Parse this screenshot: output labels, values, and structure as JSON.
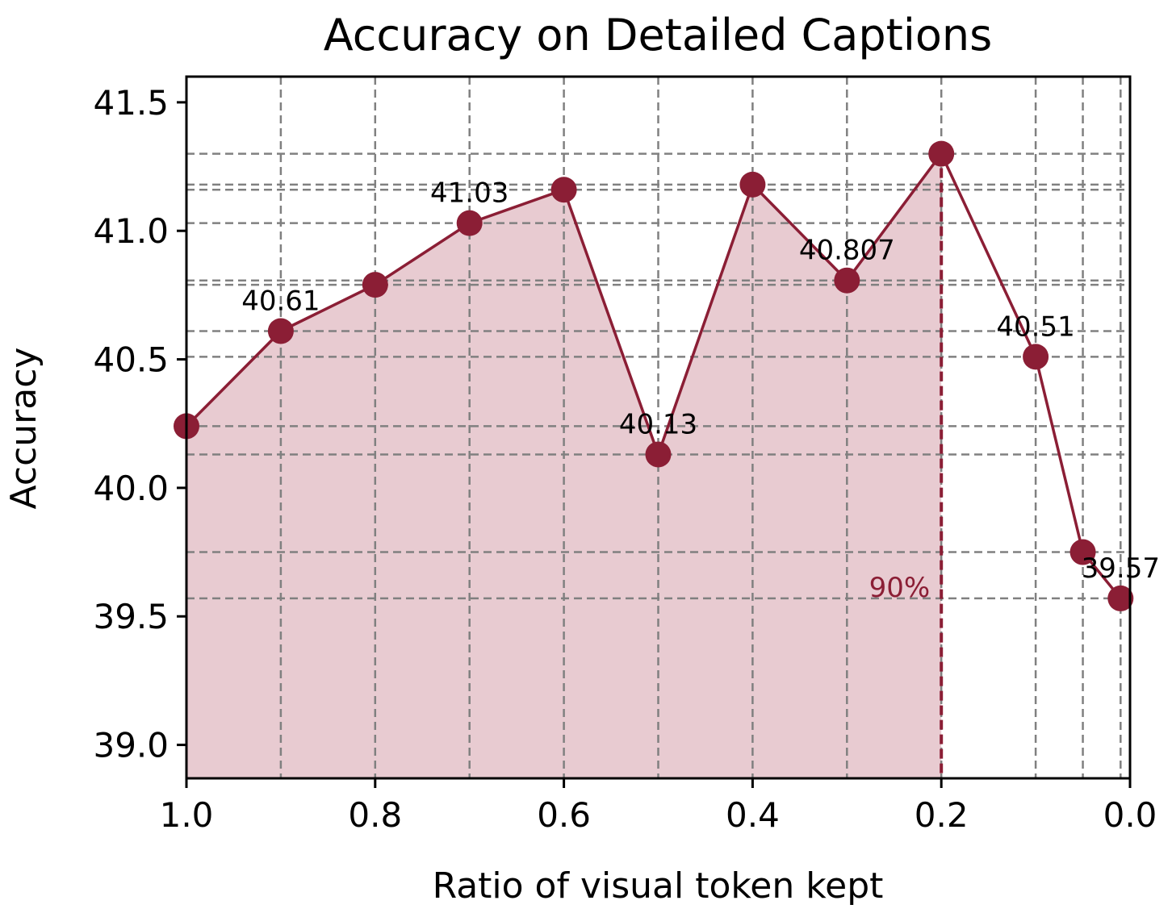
{
  "chart_data": {
    "type": "line",
    "title": "Accuracy on Detailed Captions",
    "xlabel": "Ratio of visual token kept",
    "ylabel": "Accuracy",
    "xlim": [
      1.0,
      0.0
    ],
    "ylim": [
      38.87,
      41.6
    ],
    "x_inverted": true,
    "xticks": [
      1.0,
      0.8,
      0.6,
      0.4,
      0.2,
      0.0
    ],
    "xtick_labels": [
      "1.0",
      "0.8",
      "0.6",
      "0.4",
      "0.2",
      "0.0"
    ],
    "yticks": [
      39.0,
      39.5,
      40.0,
      40.5,
      41.0,
      41.5
    ],
    "ytick_labels": [
      "39.0",
      "39.5",
      "40.0",
      "40.5",
      "41.0",
      "41.5"
    ],
    "grid": true,
    "series": [
      {
        "x": [
          1.0,
          0.9,
          0.8,
          0.7,
          0.6,
          0.5,
          0.4,
          0.3,
          0.2,
          0.1,
          0.05,
          0.01
        ],
        "y": [
          40.24,
          40.61,
          40.79,
          41.03,
          41.16,
          40.13,
          41.18,
          40.807,
          41.3,
          40.51,
          39.75,
          39.57
        ],
        "color": "#8b1e35",
        "fill_color": "#e8cbd1"
      }
    ],
    "data_labels": [
      {
        "x": 0.9,
        "y": 40.61,
        "text": "40.61"
      },
      {
        "x": 0.7,
        "y": 41.03,
        "text": "41.03"
      },
      {
        "x": 0.5,
        "y": 40.13,
        "text": "40.13"
      },
      {
        "x": 0.3,
        "y": 40.807,
        "text": "40.807"
      },
      {
        "x": 0.1,
        "y": 40.51,
        "text": "40.51"
      },
      {
        "x": 0.01,
        "y": 39.57,
        "text": "39.57"
      }
    ],
    "vline": {
      "x": 0.2,
      "color": "#8b1e35"
    },
    "annotation": {
      "x": 0.2,
      "text": "90%",
      "color": "#8b1e35"
    }
  }
}
